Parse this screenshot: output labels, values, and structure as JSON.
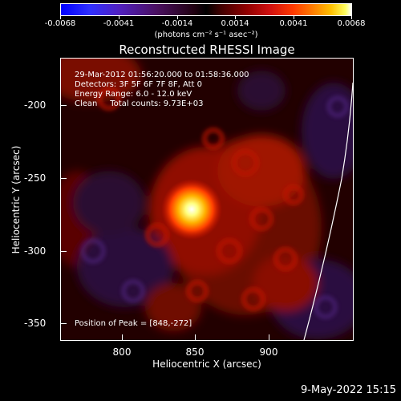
{
  "colorbar": {
    "tick_labels": [
      "-0.0068",
      "-0.0041",
      "-0.0014",
      "0.0014",
      "0.0041",
      "0.0068"
    ],
    "units": "(photons cm⁻² s⁻¹ asec⁻²)"
  },
  "title": "Reconstructed RHESSI Image",
  "info": {
    "time_range": "29-Mar-2012 01:56:20.000 to 01:58:36.000",
    "detectors": "Detectors: 3F 5F 6F 7F 8F, Att 0",
    "energy": "Energy Range: 6.0 - 12.0 keV",
    "clean": "Clean     Total counts: 9.73E+03",
    "peak": "Position of Peak = [848,-272]"
  },
  "axes": {
    "xlabel": "Heliocentric X (arcsec)",
    "ylabel": "Heliocentric Y (arcsec)",
    "x_ticks": [
      "800",
      "850",
      "900"
    ],
    "y_ticks": [
      "-200",
      "-250",
      "-300",
      "-350"
    ],
    "xlim": [
      760,
      950
    ],
    "ylim": [
      -363,
      -180
    ]
  },
  "footer": "9-May-2022 15:15"
}
